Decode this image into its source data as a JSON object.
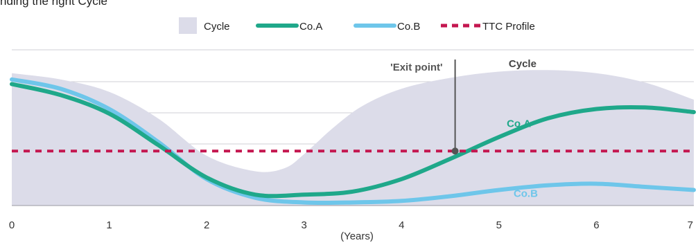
{
  "title_partial": "nding the right Cycle",
  "colors": {
    "cycle": "#dcdce9",
    "coA": "#1fa88a",
    "coB": "#6ec6ea",
    "ttc": "#c4164f",
    "grid": "#cfcfd4",
    "marker": "#555555"
  },
  "chart_data": {
    "type": "line",
    "xlabel": "(Years)",
    "ylabel": "",
    "xlim": [
      0,
      7
    ],
    "ylim": [
      0,
      10
    ],
    "x_ticks": [
      "0",
      "1",
      "2",
      "3",
      "4",
      "5",
      "6",
      "7"
    ],
    "grid": true,
    "legend": [
      {
        "label": "Cycle",
        "style": "area"
      },
      {
        "label": "Co.A",
        "style": "line"
      },
      {
        "label": "Co.B",
        "style": "line"
      },
      {
        "label": "TTC Profile",
        "style": "dashed"
      }
    ],
    "series": [
      {
        "name": "Cycle",
        "type": "area",
        "x": [
          0,
          0.5,
          1,
          1.5,
          2,
          2.5,
          2.8,
          3,
          3.3,
          3.6,
          4,
          4.5,
          5,
          5.5,
          6,
          6.5,
          7
        ],
        "y": [
          8.5,
          8.1,
          7.3,
          5.6,
          3.2,
          2.2,
          2.4,
          3.3,
          5.0,
          6.4,
          7.5,
          8.2,
          8.6,
          8.7,
          8.5,
          7.9,
          6.8
        ]
      },
      {
        "name": "Co.A",
        "type": "line",
        "x": [
          0,
          0.5,
          1,
          1.5,
          2,
          2.5,
          3,
          3.5,
          4,
          4.5,
          5,
          5.5,
          6,
          6.5,
          7
        ],
        "y": [
          7.8,
          7.1,
          5.9,
          3.9,
          1.8,
          0.7,
          0.7,
          0.9,
          1.7,
          3.0,
          4.4,
          5.6,
          6.2,
          6.3,
          6.0
        ]
      },
      {
        "name": "Co.B",
        "type": "line",
        "x": [
          0,
          0.5,
          1,
          1.5,
          2,
          2.5,
          3,
          3.5,
          4,
          4.5,
          5,
          5.5,
          6,
          6.5,
          7
        ],
        "y": [
          8.1,
          7.5,
          6.2,
          4.1,
          1.7,
          0.5,
          0.2,
          0.2,
          0.3,
          0.6,
          1.0,
          1.3,
          1.4,
          1.2,
          1.0
        ]
      },
      {
        "name": "TTC Profile",
        "type": "line",
        "x": [
          0,
          7
        ],
        "y": [
          3.5,
          3.5
        ]
      }
    ],
    "annotations": [
      {
        "text": "'Exit point'",
        "x": 4.55,
        "y": 3.5
      },
      {
        "text": "Cycle",
        "x": 5.1,
        "y": 8.9
      },
      {
        "text": "Co.A",
        "x": 5.08,
        "y": 5.05
      },
      {
        "text": "Co.B",
        "x": 5.15,
        "y": 0.55
      }
    ]
  }
}
